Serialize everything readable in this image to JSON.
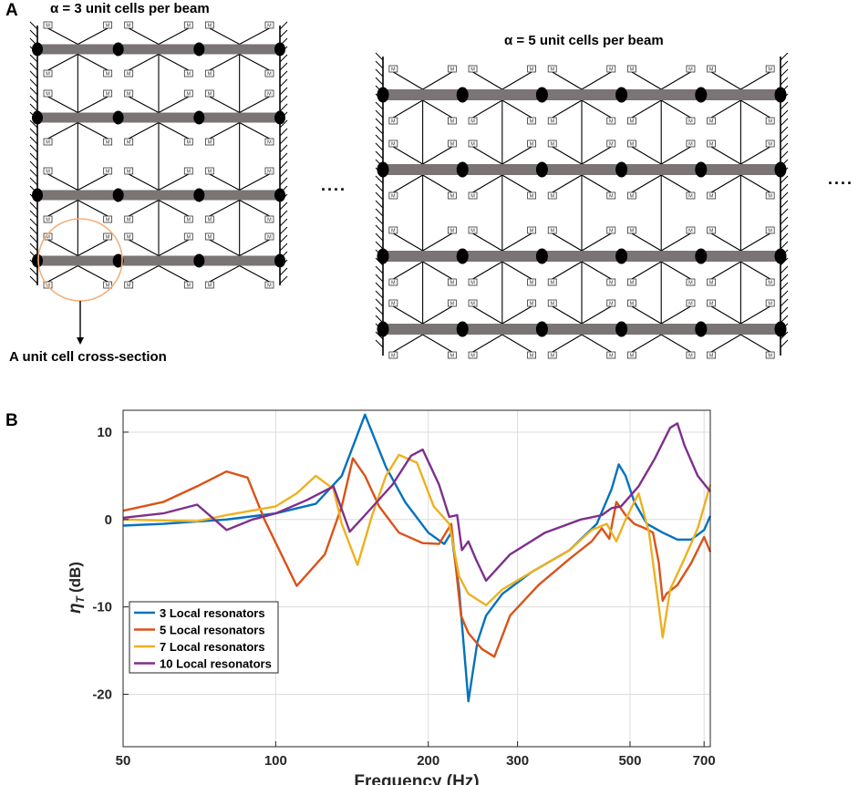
{
  "panel_a": {
    "label": "A",
    "left_caption": "α = 3  unit cells per beam",
    "right_caption": "α = 5  unit cells per beam",
    "unit_cell_label": "A unit cell cross-section",
    "mass_label": "M",
    "continuation": "....",
    "beam_color": "#7a7474",
    "circle_color": "#f0b07a"
  },
  "panel_b": {
    "label": "B"
  },
  "chart_data": {
    "type": "line",
    "xscale": "log",
    "xlabel": "Frequency (Hz)",
    "ylabel": "ηT (dB)",
    "ylabel_main": "η",
    "ylabel_sub": "T",
    "ylabel_unit": "(dB)",
    "xlim": [
      50,
      720
    ],
    "ylim": [
      -26,
      12.5
    ],
    "xticks": [
      50,
      100,
      200,
      300,
      500,
      700
    ],
    "xtick_labels": [
      "50",
      "100",
      "200",
      "300",
      "500",
      "700"
    ],
    "yticks": [
      10,
      0,
      -10,
      -20
    ],
    "ytick_labels": [
      "10",
      "0",
      "-10",
      "-20"
    ],
    "grid": true,
    "legend_position": "bottom-left",
    "series": [
      {
        "name": "3 Local resonators",
        "color": "#0072bd",
        "x": [
          50,
          60,
          80,
          100,
          120,
          135,
          150,
          165,
          180,
          200,
          215,
          222,
          230,
          240,
          250,
          260,
          280,
          320,
          380,
          430,
          460,
          475,
          490,
          510,
          540,
          580,
          620,
          660,
          700,
          720
        ],
        "y": [
          -0.7,
          -0.5,
          0,
          0.7,
          1.8,
          5,
          12,
          6,
          2,
          -1.5,
          -2.8,
          -1.5,
          -8,
          -20.8,
          -14,
          -11,
          -8.5,
          -6,
          -3.5,
          -0.5,
          3.5,
          6.3,
          5,
          2,
          -0.5,
          -1.5,
          -2.3,
          -2.3,
          -1.2,
          0.4
        ]
      },
      {
        "name": "5 Local resonators",
        "color": "#d95319",
        "x": [
          50,
          60,
          70,
          80,
          88,
          95,
          110,
          125,
          135,
          142,
          150,
          160,
          175,
          195,
          210,
          222,
          232,
          240,
          255,
          270,
          290,
          330,
          380,
          420,
          440,
          455,
          470,
          490,
          510,
          535,
          555,
          570,
          580,
          590,
          620,
          660,
          700,
          720
        ],
        "y": [
          1,
          2,
          3.8,
          5.5,
          4.8,
          0,
          -7.6,
          -4,
          1.5,
          7,
          5,
          1.5,
          -1.5,
          -2.7,
          -2.8,
          -0.5,
          -11,
          -13,
          -14.8,
          -15.7,
          -11,
          -7.5,
          -4.5,
          -2.5,
          -1,
          -2.2,
          2,
          0.5,
          -0.5,
          -1,
          -1.5,
          -5,
          -9.3,
          -8.5,
          -7.5,
          -5,
          -2,
          -3.7
        ]
      },
      {
        "name": "7 Local resonators",
        "color": "#edb120",
        "x": [
          50,
          70,
          80,
          100,
          110,
          120,
          130,
          135,
          145,
          155,
          165,
          175,
          190,
          205,
          220,
          230,
          240,
          260,
          280,
          320,
          380,
          420,
          450,
          470,
          490,
          520,
          545,
          570,
          580,
          600,
          640,
          680,
          700,
          720
        ],
        "y": [
          0,
          -0.2,
          0.5,
          1.5,
          3,
          5,
          3.5,
          -0.5,
          -5.2,
          0.5,
          5,
          7.4,
          6.5,
          1.5,
          -0.5,
          -6.5,
          -8.5,
          -9.8,
          -8,
          -6,
          -3.5,
          -1.2,
          -0.5,
          -2.5,
          0,
          3,
          -1.5,
          -10,
          -13.5,
          -8,
          -4.5,
          -1,
          1.5,
          4
        ]
      },
      {
        "name": "10 Local resonators",
        "color": "#7e2f8e",
        "x": [
          50,
          60,
          70,
          80,
          90,
          100,
          115,
          130,
          140,
          150,
          170,
          185,
          195,
          210,
          220,
          228,
          233,
          240,
          248,
          260,
          290,
          340,
          400,
          440,
          460,
          480,
          520,
          560,
          600,
          620,
          640,
          680,
          720
        ],
        "y": [
          0.2,
          0.7,
          1.7,
          -1.2,
          0,
          0.7,
          2.2,
          3.8,
          -1.4,
          0.5,
          4,
          7.3,
          8,
          4,
          0.3,
          0.5,
          -3.5,
          -2.5,
          -4.5,
          -7,
          -4,
          -1.5,
          0,
          0.5,
          1.3,
          1.5,
          3.8,
          7,
          10.5,
          11,
          8.5,
          5,
          3.2
        ]
      }
    ]
  }
}
